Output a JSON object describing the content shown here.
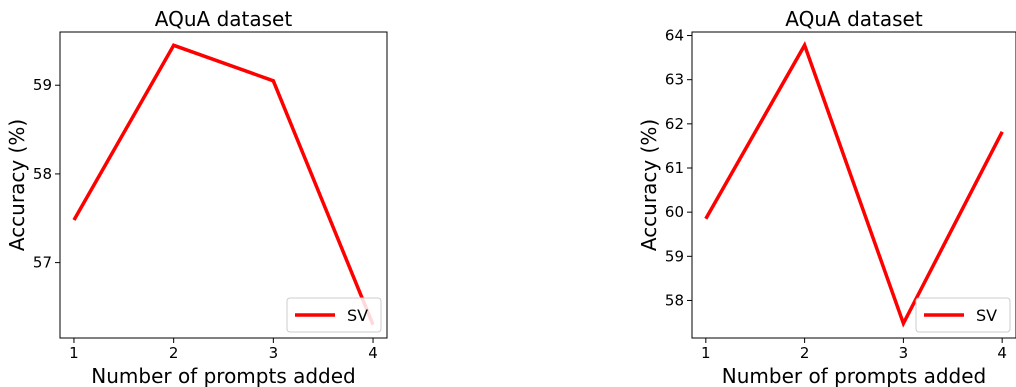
{
  "chart_data": [
    {
      "type": "line",
      "title": "AQuA dataset",
      "xlabel": "Number of prompts added",
      "ylabel": "Accuracy (%)",
      "x": [
        1,
        2,
        3,
        4
      ],
      "xticks": [
        "1",
        "2",
        "3",
        "4"
      ],
      "xlim": [
        0.86,
        4.14
      ],
      "ylim": [
        56.15,
        59.6
      ],
      "yticks": [
        "57",
        "58",
        "59"
      ],
      "series": [
        {
          "name": "SV",
          "color": "#ff0000",
          "values": [
            57.48,
            59.45,
            59.05,
            56.3
          ]
        }
      ],
      "legend": "lower-right",
      "grid": false
    },
    {
      "type": "line",
      "title": "AQuA dataset",
      "xlabel": "Number of prompts added",
      "ylabel": "Accuracy (%)",
      "x": [
        1,
        2,
        3,
        4
      ],
      "xticks": [
        "1",
        "2",
        "3",
        "4"
      ],
      "xlim": [
        0.86,
        4.14
      ],
      "ylim": [
        57.15,
        64.08
      ],
      "yticks": [
        "58",
        "59",
        "60",
        "61",
        "62",
        "63",
        "64"
      ],
      "series": [
        {
          "name": "SV",
          "color": "#ff0000",
          "values": [
            59.85,
            63.78,
            57.48,
            61.82
          ]
        }
      ],
      "legend": "lower-right",
      "grid": false
    }
  ]
}
